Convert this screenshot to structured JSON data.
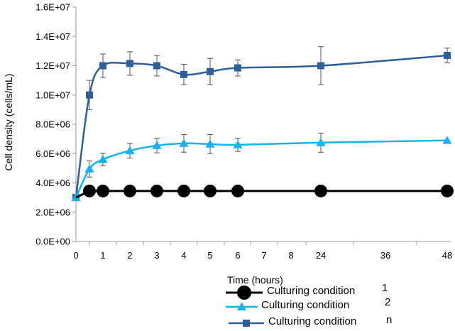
{
  "chart_data": {
    "type": "line",
    "xlabel": "Time (hours)",
    "ylabel": "Cell density (cells/mL)",
    "x_tick_labels": [
      "0",
      "1",
      "2",
      "3",
      "4",
      "5",
      "6",
      "7",
      "8",
      "24",
      "36",
      "48"
    ],
    "y_tick_labels": [
      "0.0E+00",
      "2.0E+06",
      "4.0E+06",
      "6.0E+06",
      "8.0E+06",
      "1.0E+07",
      "1.2E+07",
      "1.4E+07",
      "1.6E+07"
    ],
    "ylim": [
      0,
      16000000
    ],
    "grid": "none",
    "legend_position": "bottom",
    "series": [
      {
        "name": "Culturing condition",
        "legend_suffix": "1",
        "color": "#000000",
        "marker": "circle",
        "points": [
          {
            "x": 0,
            "y": 3000000
          },
          {
            "x": 0.5,
            "y": 3450000
          },
          {
            "x": 1,
            "y": 3450000
          },
          {
            "x": 2,
            "y": 3450000
          },
          {
            "x": 3,
            "y": 3450000
          },
          {
            "x": 4,
            "y": 3450000
          },
          {
            "x": 5,
            "y": 3450000
          },
          {
            "x": 6,
            "y": 3450000
          },
          {
            "x": 24,
            "y": 3450000
          },
          {
            "x": 48,
            "y": 3450000
          }
        ]
      },
      {
        "name": "Culturing condition",
        "legend_suffix": "2",
        "color": "#1ab2ec",
        "marker": "triangle",
        "points": [
          {
            "x": 0,
            "y": 3000000
          },
          {
            "x": 0.5,
            "y": 4950000,
            "err": 550000
          },
          {
            "x": 1,
            "y": 5600000,
            "err": 420000
          },
          {
            "x": 2,
            "y": 6200000,
            "err": 500000
          },
          {
            "x": 3,
            "y": 6550000,
            "err": 500000
          },
          {
            "x": 4,
            "y": 6700000,
            "err": 600000
          },
          {
            "x": 5,
            "y": 6650000,
            "err": 650000
          },
          {
            "x": 6,
            "y": 6600000,
            "err": 450000
          },
          {
            "x": 24,
            "y": 6750000,
            "err": 650000
          },
          {
            "x": 48,
            "y": 6900000
          }
        ]
      },
      {
        "name": "Culturing condition",
        "legend_suffix": "n",
        "color": "#2e5f9b",
        "marker": "square",
        "points": [
          {
            "x": 0,
            "y": 3000000
          },
          {
            "x": 0.5,
            "y": 10000000,
            "err": 1000000
          },
          {
            "x": 1,
            "y": 12000000,
            "err": 800000
          },
          {
            "x": 2,
            "y": 12150000,
            "err": 800000
          },
          {
            "x": 3,
            "y": 12000000,
            "err": 700000
          },
          {
            "x": 4,
            "y": 11400000,
            "err": 700000
          },
          {
            "x": 5,
            "y": 11600000,
            "err": 900000
          },
          {
            "x": 6,
            "y": 11850000,
            "err": 550000
          },
          {
            "x": 24,
            "y": 12000000,
            "err": 1300000
          },
          {
            "x": 48,
            "y": 12700000,
            "err": 500000
          }
        ]
      }
    ]
  }
}
